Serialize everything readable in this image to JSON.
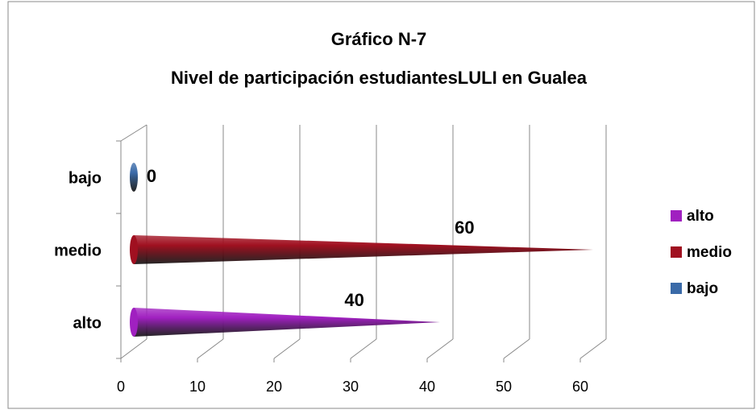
{
  "chart_data": {
    "type": "cone-bar-horizontal",
    "title": [
      "Gráfico N-7",
      "Nivel de participación estudiantesLULI en Gualea"
    ],
    "categories": [
      "alto",
      "medio",
      "bajo"
    ],
    "values": [
      40,
      60,
      0
    ],
    "colors": [
      "#a020c0",
      "#a01020",
      "#3a6aa8"
    ],
    "xlim": [
      0,
      60
    ],
    "xticks": [
      0,
      10,
      20,
      30,
      40,
      50,
      60
    ],
    "grid": true,
    "legend": "right"
  }
}
